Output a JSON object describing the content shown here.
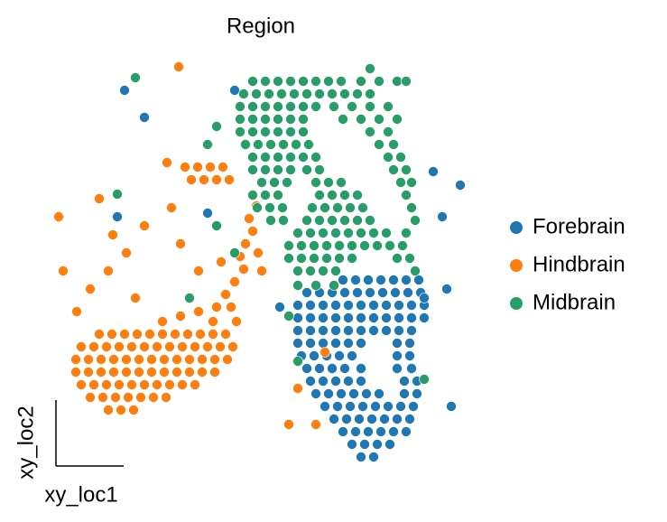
{
  "chart_data": {
    "type": "scatter",
    "title": "Region",
    "x_label": "xy_loc1",
    "y_label": "xy_loc2",
    "xlim": [
      60,
      520
    ],
    "ylim": [
      0,
      460
    ],
    "legend": "right",
    "series": [
      {
        "name": "Forebrain",
        "color": "#1f77b4",
        "x": [
          380,
          394,
          408,
          422,
          436,
          450,
          464,
          340,
          354,
          368,
          382,
          396,
          410,
          424,
          438,
          452,
          466,
          330,
          344,
          358,
          372,
          386,
          400,
          414,
          428,
          442,
          456,
          470,
          330,
          344,
          358,
          372,
          386,
          400,
          414,
          428,
          442,
          456,
          470,
          330,
          344,
          358,
          372,
          386,
          400,
          414,
          428,
          442,
          456,
          330,
          344,
          358,
          372,
          386,
          400,
          440,
          454,
          334,
          348,
          362,
          376,
          390,
          440,
          454,
          340,
          354,
          368,
          382,
          400,
          440,
          456,
          344,
          358,
          372,
          386,
          400,
          448,
          462,
          350,
          364,
          378,
          392,
          406,
          420,
          448,
          462,
          360,
          374,
          388,
          402,
          416,
          430,
          444,
          458,
          370,
          384,
          398,
          412,
          426,
          440,
          454,
          380,
          394,
          408,
          422,
          436,
          450,
          390,
          404,
          418,
          432,
          400,
          414,
          138,
          160,
          260,
          480,
          510,
          490,
          495,
          470,
          310,
          230,
          130,
          500
        ],
        "y": [
          210,
          210,
          210,
          210,
          210,
          210,
          210,
          196,
          196,
          196,
          196,
          196,
          196,
          196,
          196,
          196,
          196,
          182,
          182,
          182,
          182,
          182,
          182,
          182,
          182,
          182,
          182,
          182,
          168,
          168,
          168,
          168,
          168,
          168,
          168,
          168,
          168,
          168,
          168,
          154,
          154,
          154,
          154,
          154,
          154,
          154,
          154,
          154,
          154,
          140,
          140,
          140,
          140,
          140,
          140,
          140,
          140,
          126,
          126,
          126,
          126,
          126,
          126,
          126,
          112,
          112,
          112,
          112,
          112,
          112,
          112,
          98,
          98,
          98,
          98,
          98,
          98,
          98,
          84,
          84,
          84,
          84,
          84,
          84,
          84,
          84,
          70,
          70,
          70,
          70,
          70,
          70,
          70,
          70,
          56,
          56,
          56,
          56,
          56,
          56,
          56,
          42,
          42,
          42,
          42,
          42,
          42,
          28,
          28,
          28,
          28,
          14,
          14,
          420,
          390,
          420,
          330,
          315,
          280,
          200,
          190,
          180,
          284,
          280,
          70
        ]
      },
      {
        "name": "Hindbrain",
        "color": "#ff7f0e",
        "x": [
          110,
          124,
          138,
          152,
          166,
          180,
          194,
          208,
          222,
          236,
          250,
          90,
          104,
          118,
          132,
          146,
          160,
          174,
          188,
          202,
          216,
          230,
          244,
          258,
          84,
          98,
          112,
          126,
          140,
          154,
          168,
          182,
          196,
          210,
          224,
          238,
          252,
          84,
          98,
          112,
          126,
          140,
          154,
          168,
          182,
          196,
          210,
          224,
          238,
          90,
          104,
          118,
          132,
          146,
          160,
          174,
          188,
          202,
          216,
          100,
          114,
          128,
          142,
          156,
          170,
          184,
          120,
          134,
          148,
          180,
          200,
          220,
          240,
          250,
          260,
          270,
          266,
          272,
          280,
          276,
          284,
          256,
          236,
          262,
          290,
          286,
          205,
          219,
          233,
          247,
          212,
          226,
          240,
          254,
          65,
          70,
          85,
          110,
          125,
          140,
          160,
          185,
          190,
          200,
          220,
          245,
          100,
          120,
          150,
          198,
          320,
          330,
          350,
          360
        ],
        "y": [
          150,
          150,
          150,
          150,
          150,
          150,
          150,
          150,
          150,
          150,
          150,
          136,
          136,
          136,
          136,
          136,
          136,
          136,
          136,
          136,
          136,
          136,
          136,
          136,
          122,
          122,
          122,
          122,
          122,
          122,
          122,
          122,
          122,
          122,
          122,
          122,
          122,
          108,
          108,
          108,
          108,
          108,
          108,
          108,
          108,
          108,
          108,
          108,
          108,
          94,
          94,
          94,
          94,
          94,
          94,
          94,
          94,
          94,
          94,
          80,
          80,
          80,
          80,
          80,
          80,
          80,
          66,
          66,
          66,
          164,
          170,
          175,
          180,
          194,
          208,
          222,
          236,
          250,
          264,
          278,
          292,
          180,
          164,
          164,
          220,
          240,
          335,
          335,
          335,
          335,
          321,
          321,
          321,
          321,
          280,
          220,
          175,
          300,
          260,
          240,
          270,
          340,
          290,
          250,
          220,
          230,
          200,
          220,
          190,
          446,
          50,
          90,
          50,
          130
        ]
      },
      {
        "name": "Midbrain",
        "color": "#279e68",
        "x": [
          280,
          294,
          308,
          322,
          336,
          350,
          364,
          378,
          400,
          420,
          440,
          270,
          284,
          298,
          312,
          326,
          340,
          354,
          368,
          382,
          396,
          410,
          266,
          280,
          294,
          308,
          322,
          336,
          350,
          370,
          390,
          410,
          430,
          266,
          280,
          294,
          308,
          322,
          336,
          380,
          400,
          420,
          440,
          266,
          280,
          294,
          308,
          322,
          336,
          410,
          430,
          272,
          286,
          300,
          314,
          328,
          342,
          420,
          436,
          280,
          294,
          308,
          322,
          336,
          350,
          430,
          444,
          280,
          294,
          308,
          322,
          340,
          354,
          436,
          450,
          290,
          304,
          318,
          350,
          364,
          378,
          444,
          456,
          280,
          294,
          308,
          354,
          368,
          382,
          396,
          450,
          285,
          299,
          313,
          346,
          360,
          374,
          388,
          402,
          456,
          300,
          314,
          340,
          354,
          368,
          382,
          396,
          410,
          460,
          330,
          344,
          358,
          372,
          386,
          400,
          414,
          428,
          450,
          320,
          334,
          348,
          362,
          376,
          390,
          404,
          418,
          432,
          446,
          320,
          334,
          348,
          362,
          376,
          390,
          440,
          454,
          330,
          344,
          358,
          372,
          460,
          330,
          350,
          370,
          150,
          240,
          230,
          240,
          130,
          210,
          410,
          450,
          260,
          320,
          470,
          330
        ],
        "y": [
          430,
          430,
          430,
          430,
          430,
          430,
          430,
          430,
          430,
          430,
          430,
          416,
          416,
          416,
          416,
          416,
          416,
          416,
          416,
          416,
          416,
          416,
          402,
          402,
          402,
          402,
          402,
          402,
          402,
          402,
          402,
          402,
          402,
          388,
          388,
          388,
          388,
          388,
          388,
          388,
          388,
          388,
          388,
          374,
          374,
          374,
          374,
          374,
          374,
          374,
          374,
          360,
          360,
          360,
          360,
          360,
          360,
          360,
          360,
          346,
          346,
          346,
          346,
          346,
          346,
          346,
          346,
          332,
          332,
          332,
          332,
          332,
          332,
          332,
          332,
          318,
          318,
          318,
          318,
          318,
          318,
          318,
          318,
          304,
          304,
          304,
          304,
          304,
          304,
          304,
          304,
          290,
          290,
          290,
          290,
          290,
          290,
          290,
          290,
          290,
          276,
          276,
          276,
          276,
          276,
          276,
          276,
          276,
          276,
          262,
          262,
          262,
          262,
          262,
          262,
          262,
          262,
          262,
          248,
          248,
          248,
          248,
          248,
          248,
          248,
          248,
          248,
          248,
          234,
          234,
          234,
          234,
          234,
          234,
          234,
          234,
          220,
          220,
          220,
          220,
          220,
          204,
          204,
          204,
          434,
          380,
          360,
          270,
          305,
          190,
          444,
          430,
          240,
          170,
          100,
          120
        ]
      }
    ]
  }
}
